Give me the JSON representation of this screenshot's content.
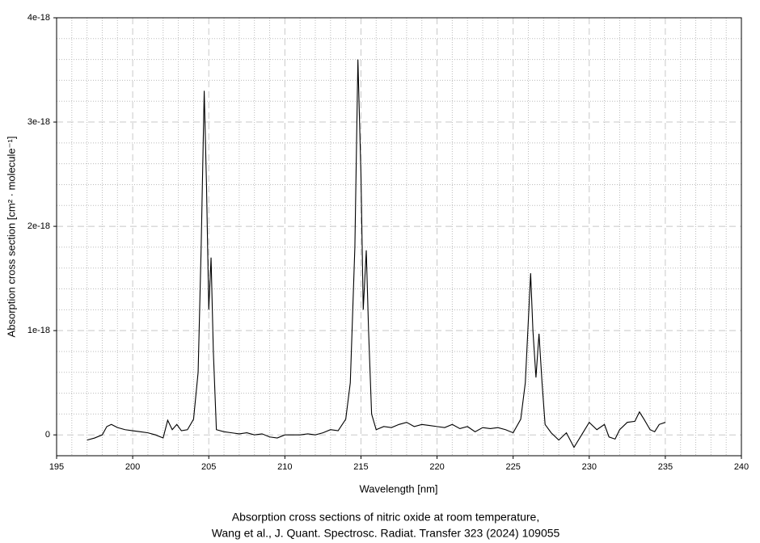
{
  "chart_data": {
    "type": "line",
    "title": "Absorption cross sections of nitric oxide  at room temperature,",
    "subtitle": "Wang et al., J. Quant. Spectrosc. Radiat. Transfer 323 (2024) 109055",
    "xlabel": "Wavelength [nm]",
    "ylabel": "Absorption cross section [cm² · molecule⁻¹]",
    "xlim": [
      195,
      240
    ],
    "xticks": [
      195,
      200,
      205,
      210,
      215,
      220,
      225,
      230,
      235,
      240
    ],
    "ylim": [
      -2e-19,
      4e-18
    ],
    "yticks": [
      0,
      1e-18,
      2e-18,
      3e-18,
      4e-18
    ],
    "grid": true,
    "minor_grid": true,
    "series": [
      {
        "color": "#000000",
        "x": [
          197.0,
          197.5,
          198.0,
          198.3,
          198.6,
          199.0,
          199.5,
          200.0,
          200.5,
          201.0,
          201.5,
          202.0,
          202.3,
          202.6,
          202.9,
          203.2,
          203.6,
          204.0,
          204.3,
          204.5,
          204.7,
          204.85,
          205.0,
          205.15,
          205.3,
          205.5,
          206.0,
          206.5,
          207.0,
          207.5,
          208.0,
          208.5,
          209.0,
          209.5,
          210.0,
          210.5,
          211.0,
          211.5,
          212.0,
          212.5,
          213.0,
          213.5,
          214.0,
          214.3,
          214.6,
          214.8,
          215.0,
          215.15,
          215.35,
          215.5,
          215.7,
          216.0,
          216.5,
          217.0,
          217.5,
          218.0,
          218.5,
          219.0,
          219.5,
          220.0,
          220.5,
          221.0,
          221.5,
          222.0,
          222.5,
          223.0,
          223.5,
          224.0,
          224.5,
          225.0,
          225.5,
          225.8,
          226.0,
          226.15,
          226.3,
          226.5,
          226.7,
          226.9,
          227.1,
          227.5,
          228.0,
          228.5,
          229.0,
          229.5,
          230.0,
          230.5,
          231.0,
          231.3,
          231.7,
          232.0,
          232.5,
          233.0,
          233.3,
          233.6,
          234.0,
          234.3,
          234.6,
          235.0
        ],
        "values": [
          -5e-20,
          -3e-20,
          0.0,
          8e-20,
          1e-19,
          7e-20,
          5e-20,
          4e-20,
          3e-20,
          2e-20,
          0.0,
          -3e-20,
          1.4e-19,
          5e-20,
          1e-19,
          4e-20,
          5e-20,
          1.5e-19,
          6e-19,
          1.8e-18,
          3.3e-18,
          2.4e-18,
          1.2e-18,
          1.7e-18,
          8e-19,
          5e-20,
          3e-20,
          2e-20,
          1e-20,
          2e-20,
          0.0,
          1e-20,
          -2e-20,
          -3e-20,
          0.0,
          0.0,
          0.0,
          1e-20,
          0.0,
          2e-20,
          5e-20,
          4e-20,
          1.5e-19,
          5e-19,
          1.8e-18,
          3.6e-18,
          2.5e-18,
          1.2e-18,
          1.77e-18,
          1e-18,
          2e-19,
          5e-20,
          8e-20,
          7e-20,
          1e-19,
          1.2e-19,
          8e-20,
          1e-19,
          9e-20,
          8e-20,
          7e-20,
          1e-19,
          6e-20,
          8e-20,
          3e-20,
          7e-20,
          6e-20,
          7e-20,
          5e-20,
          2e-20,
          1.5e-19,
          5e-19,
          1.1e-18,
          1.55e-18,
          1e-18,
          5.5e-19,
          9.7e-19,
          5e-19,
          1e-19,
          2e-20,
          -5e-20,
          2e-20,
          -1.2e-19,
          0.0,
          1.2e-19,
          5e-20,
          1e-19,
          -2e-20,
          -4e-20,
          5e-20,
          1.2e-19,
          1.3e-19,
          2.2e-19,
          1.5e-19,
          5e-20,
          3e-20,
          1e-19,
          1.2e-19
        ]
      }
    ]
  }
}
